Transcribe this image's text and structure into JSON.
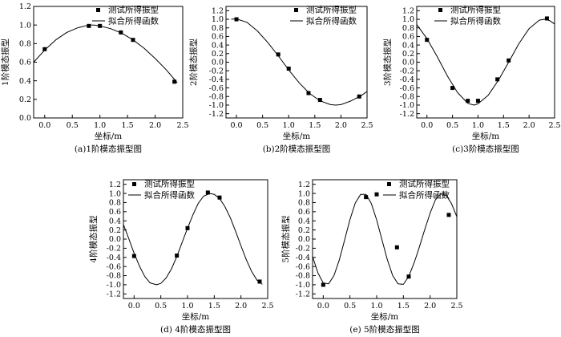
{
  "legend": {
    "marker_label": "测试所得振型",
    "line_label": "拟合所得函数"
  },
  "xlabel": "坐标/m",
  "chart_data": [
    {
      "type": "scatter",
      "caption": "(a)1阶模态振型图",
      "ylabel": "1阶模态振型",
      "xlim": [
        -0.2,
        2.5
      ],
      "xticks": [
        0.0,
        0.5,
        1.0,
        1.5,
        2.0,
        2.5
      ],
      "ylim": [
        0,
        1.2
      ],
      "yticks": [
        0.0,
        0.2,
        0.4,
        0.6,
        0.8,
        1.0,
        1.2
      ],
      "series": [
        {
          "kind": "scatter",
          "x": [
            0.0,
            0.8,
            1.0,
            1.38,
            1.6,
            2.35
          ],
          "y": [
            0.74,
            0.99,
            0.99,
            0.92,
            0.84,
            0.39
          ]
        },
        {
          "kind": "line",
          "x": [
            -0.2,
            0.0,
            0.2,
            0.4,
            0.6,
            0.8,
            0.9,
            1.0,
            1.2,
            1.4,
            1.6,
            1.8,
            2.0,
            2.2,
            2.4
          ],
          "y": [
            0.6,
            0.73,
            0.84,
            0.92,
            0.97,
            1.0,
            1.0,
            0.99,
            0.96,
            0.91,
            0.84,
            0.75,
            0.64,
            0.52,
            0.38
          ]
        }
      ]
    },
    {
      "type": "scatter",
      "caption": "(b)2阶模态振型图",
      "ylabel": "2阶模态振型",
      "xlim": [
        -0.2,
        2.5
      ],
      "xticks": [
        0.0,
        0.5,
        1.0,
        1.5,
        2.0,
        2.5
      ],
      "ylim": [
        -1.3,
        1.3
      ],
      "yticks": [
        -1.2,
        -1.0,
        -0.8,
        -0.6,
        -0.4,
        -0.2,
        0.0,
        0.2,
        0.4,
        0.6,
        0.8,
        1.0,
        1.2
      ],
      "series": [
        {
          "kind": "scatter",
          "x": [
            0.0,
            0.8,
            1.0,
            1.38,
            1.6,
            2.35
          ],
          "y": [
            1.0,
            0.18,
            -0.15,
            -0.72,
            -0.88,
            -0.8
          ]
        },
        {
          "kind": "line",
          "x": [
            -0.1,
            0.0,
            0.2,
            0.4,
            0.6,
            0.8,
            1.0,
            1.2,
            1.4,
            1.6,
            1.8,
            1.9,
            2.0,
            2.2,
            2.4,
            2.5
          ],
          "y": [
            1.0,
            1.01,
            0.93,
            0.73,
            0.46,
            0.15,
            -0.18,
            -0.48,
            -0.73,
            -0.9,
            -0.99,
            -1.0,
            -0.99,
            -0.9,
            -0.77,
            -0.68
          ]
        }
      ]
    },
    {
      "type": "scatter",
      "caption": "(c)3阶模态振型图",
      "ylabel": "3阶模态振型",
      "xlim": [
        -0.2,
        2.5
      ],
      "xticks": [
        0.0,
        0.5,
        1.0,
        1.5,
        2.0,
        2.5
      ],
      "ylim": [
        -1.3,
        1.3
      ],
      "yticks": [
        -1.2,
        -1.0,
        -0.8,
        -0.6,
        -0.4,
        -0.2,
        0.0,
        0.2,
        0.4,
        0.6,
        0.8,
        1.0,
        1.2
      ],
      "series": [
        {
          "kind": "scatter",
          "x": [
            0.0,
            0.5,
            0.8,
            1.0,
            1.38,
            1.6,
            2.35
          ],
          "y": [
            0.52,
            -0.6,
            -0.9,
            -0.9,
            -0.4,
            0.04,
            1.02
          ]
        },
        {
          "kind": "line",
          "x": [
            -0.2,
            0.0,
            0.2,
            0.4,
            0.6,
            0.8,
            0.92,
            1.0,
            1.2,
            1.4,
            1.6,
            1.8,
            2.0,
            2.2,
            2.3,
            2.4,
            2.5
          ],
          "y": [
            0.88,
            0.55,
            0.13,
            -0.32,
            -0.71,
            -0.96,
            -1.0,
            -0.97,
            -0.77,
            -0.42,
            0.0,
            0.43,
            0.78,
            0.98,
            1.0,
            0.97,
            0.89
          ]
        }
      ]
    },
    {
      "type": "scatter",
      "caption": "(d) 4阶模态振型图",
      "ylabel": "4阶模态振型",
      "xlim": [
        -0.2,
        2.5
      ],
      "xticks": [
        0.0,
        0.5,
        1.0,
        1.5,
        2.0,
        2.5
      ],
      "ylim": [
        -1.3,
        1.3
      ],
      "yticks": [
        -1.2,
        -1.0,
        -0.8,
        -0.6,
        -0.4,
        -0.2,
        0.0,
        0.2,
        0.4,
        0.6,
        0.8,
        1.0,
        1.2
      ],
      "series": [
        {
          "kind": "scatter",
          "x": [
            0.0,
            0.8,
            1.0,
            1.38,
            1.6,
            2.35
          ],
          "y": [
            -0.37,
            -0.36,
            0.24,
            1.02,
            0.91,
            -0.93
          ]
        },
        {
          "kind": "line",
          "x": [
            -0.2,
            -0.1,
            0.0,
            0.1,
            0.2,
            0.3,
            0.42,
            0.5,
            0.6,
            0.7,
            0.8,
            0.9,
            1.0,
            1.1,
            1.2,
            1.3,
            1.42,
            1.5,
            1.6,
            1.7,
            1.8,
            1.9,
            2.0,
            2.1,
            2.2,
            2.3,
            2.4
          ],
          "y": [
            0.32,
            0.01,
            -0.31,
            -0.59,
            -0.82,
            -0.96,
            -1.0,
            -0.97,
            -0.85,
            -0.65,
            -0.38,
            -0.07,
            0.24,
            0.53,
            0.78,
            0.94,
            1.0,
            0.98,
            0.89,
            0.71,
            0.47,
            0.17,
            -0.15,
            -0.45,
            -0.71,
            -0.9,
            -0.99
          ]
        }
      ]
    },
    {
      "type": "scatter",
      "caption": "(e) 5阶模态振型图",
      "ylabel": "5阶模态振型",
      "xlim": [
        -0.2,
        2.5
      ],
      "xticks": [
        0.0,
        0.5,
        1.0,
        1.5,
        2.0,
        2.5
      ],
      "ylim": [
        -1.3,
        1.3
      ],
      "yticks": [
        -1.2,
        -1.0,
        -0.8,
        -0.6,
        -0.4,
        -0.2,
        0.0,
        0.2,
        0.4,
        0.6,
        0.8,
        1.0,
        1.2
      ],
      "series": [
        {
          "kind": "scatter",
          "x": [
            0.0,
            0.8,
            1.0,
            1.38,
            1.6,
            2.35
          ],
          "y": [
            -1.0,
            0.92,
            0.98,
            -0.18,
            -0.82,
            0.53
          ]
        },
        {
          "kind": "line",
          "x": [
            -0.2,
            -0.1,
            0.0,
            0.1,
            0.2,
            0.3,
            0.4,
            0.5,
            0.6,
            0.7,
            0.8,
            0.9,
            1.0,
            1.1,
            1.2,
            1.3,
            1.4,
            1.5,
            1.6,
            1.7,
            1.75,
            1.8,
            1.9,
            2.0,
            2.1,
            2.2,
            2.3,
            2.4,
            2.5
          ],
          "y": [
            -0.38,
            -0.74,
            -0.96,
            -0.98,
            -0.8,
            -0.46,
            -0.02,
            0.43,
            0.79,
            0.98,
            0.98,
            0.78,
            0.42,
            -0.02,
            -0.45,
            -0.8,
            -0.98,
            -0.99,
            -0.82,
            -0.52,
            -0.35,
            -0.17,
            0.21,
            0.57,
            0.86,
            0.99,
            0.96,
            0.78,
            0.49
          ]
        }
      ]
    }
  ]
}
